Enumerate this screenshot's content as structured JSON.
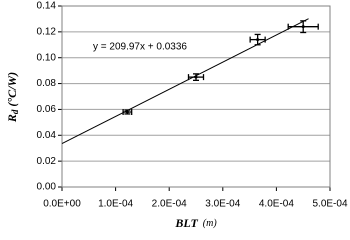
{
  "chart_data": {
    "type": "scatter",
    "x_label": {
      "main": "BLT",
      "unit": "(m)"
    },
    "y_label": {
      "main": "R",
      "sub": "d",
      "unit": "(°C/W)"
    },
    "x": [
      0.000122,
      0.00025,
      0.000365,
      0.00045
    ],
    "y": [
      0.058,
      0.085,
      0.114,
      0.124
    ],
    "x_err": [
      8e-06,
      1.4e-05,
      1.4e-05,
      2.8e-05
    ],
    "y_err": [
      0.0015,
      0.0025,
      0.004,
      0.0045
    ],
    "color": "#000000",
    "trendline": {
      "equation": "y = 209.97x + 0.0336",
      "slope": 209.97,
      "intercept": 0.0336,
      "x": [
        0,
        0.00046
      ]
    },
    "xlim": [
      0,
      0.0005
    ],
    "xticks": [
      {
        "value": 0,
        "label": "0.0E+00"
      },
      {
        "value": 0.0001,
        "label": "1.0E-04"
      },
      {
        "value": 0.0002,
        "label": "2.0E-04"
      },
      {
        "value": 0.0003,
        "label": "3.0E-04"
      },
      {
        "value": 0.0004,
        "label": "4.0E-04"
      },
      {
        "value": 0.0005,
        "label": "5.0E-04"
      }
    ],
    "ylim": [
      0,
      0.14
    ],
    "yticks": [
      {
        "value": 0,
        "label": "0.00"
      },
      {
        "value": 0.02,
        "label": "0.02"
      },
      {
        "value": 0.04,
        "label": "0.04"
      },
      {
        "value": 0.06,
        "label": "0.06"
      },
      {
        "value": 0.08,
        "label": "0.08"
      },
      {
        "value": 0.1,
        "label": "0.10"
      },
      {
        "value": 0.12,
        "label": "0.12"
      },
      {
        "value": 0.14,
        "label": "0.14"
      }
    ],
    "grid": true
  }
}
